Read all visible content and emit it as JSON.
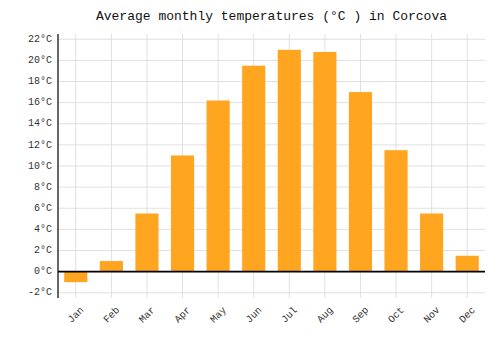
{
  "chart_data": {
    "type": "bar",
    "title": "Average monthly temperatures (°C ) in Corcova",
    "categories": [
      "Jan",
      "Feb",
      "Mar",
      "Apr",
      "May",
      "Jun",
      "Jul",
      "Aug",
      "Sep",
      "Oct",
      "Nov",
      "Dec"
    ],
    "values": [
      -1.0,
      1.0,
      5.5,
      11.0,
      16.2,
      19.5,
      21.0,
      20.8,
      17.0,
      11.5,
      5.5,
      1.5
    ],
    "color": "#FFA520",
    "ylim": [
      -2.5,
      22.5
    ],
    "yticks": [
      {
        "value": -2,
        "label": "-2°C"
      },
      {
        "value": 0,
        "label": "0°C"
      },
      {
        "value": 2,
        "label": "2°C"
      },
      {
        "value": 4,
        "label": "4°C"
      },
      {
        "value": 6,
        "label": "6°C"
      },
      {
        "value": 8,
        "label": "8°C"
      },
      {
        "value": 10,
        "label": "10°C"
      },
      {
        "value": 12,
        "label": "12°C"
      },
      {
        "value": 14,
        "label": "14°C"
      },
      {
        "value": 16,
        "label": "16°C"
      },
      {
        "value": 18,
        "label": "18°C"
      },
      {
        "value": 20,
        "label": "20°C"
      },
      {
        "value": 22,
        "label": "22°C"
      }
    ],
    "grid": true
  }
}
